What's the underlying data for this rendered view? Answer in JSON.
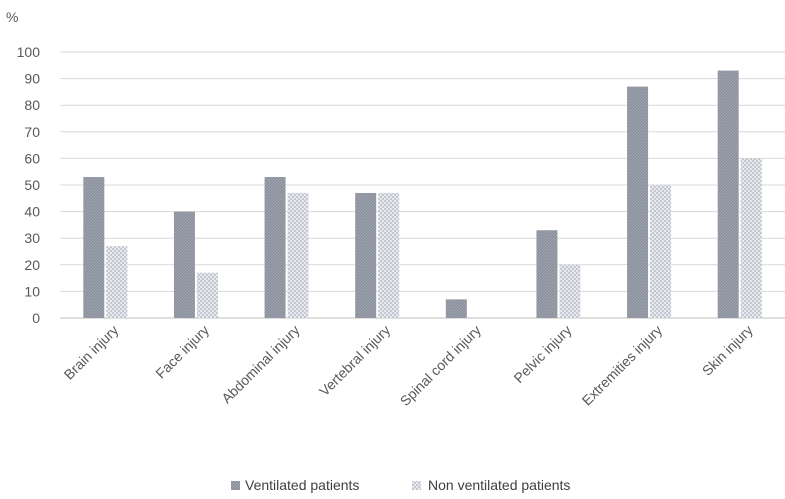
{
  "chart_data": {
    "type": "bar",
    "ylabel": "%",
    "ylim": [
      0,
      100
    ],
    "yticks": [
      0,
      10,
      20,
      30,
      40,
      50,
      60,
      70,
      80,
      90,
      100
    ],
    "grid": true,
    "legend_position": "bottom",
    "categories": [
      "Brain injury",
      "Face injury",
      "Abdominal injury",
      "Vertebral injury",
      "Spinal cord injury",
      "Pelvic injury",
      "Extremities injury",
      "Skin injury"
    ],
    "series": [
      {
        "name": "Ventilated patients",
        "values": [
          53,
          40,
          53,
          47,
          7,
          33,
          87,
          93
        ],
        "color": "#8a909c"
      },
      {
        "name": "Non ventilated patients",
        "values": [
          27,
          17,
          47,
          47,
          0,
          20,
          50,
          60
        ],
        "color": "#c8ccd4"
      }
    ]
  }
}
